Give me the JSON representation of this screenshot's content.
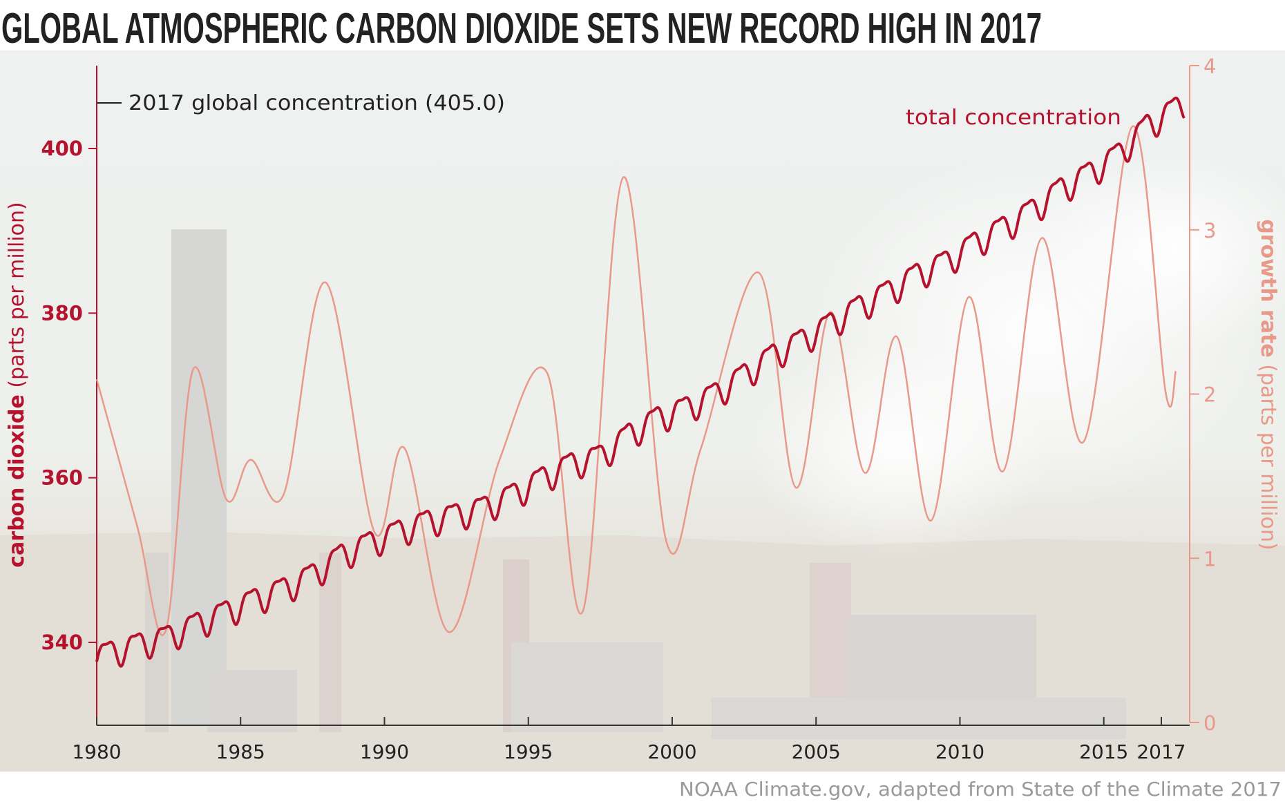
{
  "title": "GLOBAL ATMOSPHERIC CARBON DIOXIDE SETS NEW RECORD HIGH IN 2017",
  "credit": "NOAA Climate.gov, adapted from State of the Climate 2017",
  "colors": {
    "co2": "#b5122e",
    "growth": "#e8998a",
    "text": "#222222",
    "credit": "#9a9a9a"
  },
  "chart_data": {
    "type": "line",
    "title": "GLOBAL ATMOSPHERIC CARBON DIOXIDE SETS NEW RECORD HIGH IN 2017",
    "xlabel": "",
    "xlim": [
      1980,
      2018
    ],
    "x_ticks": [
      "1980",
      "1985",
      "1990",
      "1995",
      "2000",
      "2005",
      "2010",
      "2015",
      "2017"
    ],
    "x_tick_values": [
      1980,
      1985,
      1990,
      1995,
      2000,
      2005,
      2010,
      2015,
      2017
    ],
    "y_left": {
      "label": "carbon dioxide (parts per million)",
      "ylim": [
        330,
        410
      ],
      "ticks": [
        "340",
        "360",
        "380",
        "400"
      ],
      "tick_values": [
        340,
        360,
        380,
        400
      ]
    },
    "y_right": {
      "label": "growth rate (parts per million)",
      "ylim": [
        0,
        4
      ],
      "ticks": [
        "0",
        "1",
        "2",
        "3",
        "4"
      ],
      "tick_values": [
        0,
        1,
        2,
        3,
        4
      ]
    },
    "grid": false,
    "annotation": {
      "text": "2017 global concentration (405.0)",
      "value": 405.0
    },
    "series": [
      {
        "name": "total concentration",
        "axis": "left",
        "annual_mean_years": [
          1980,
          1981,
          1982,
          1983,
          1984,
          1985,
          1986,
          1987,
          1988,
          1989,
          1990,
          1991,
          1992,
          1993,
          1994,
          1995,
          1996,
          1997,
          1998,
          1999,
          2000,
          2001,
          2002,
          2003,
          2004,
          2005,
          2006,
          2007,
          2008,
          2009,
          2010,
          2011,
          2012,
          2013,
          2014,
          2015,
          2016,
          2017
        ],
        "annual_mean_values": [
          338.9,
          339.9,
          340.8,
          342.4,
          343.8,
          345.3,
          346.6,
          348.3,
          350.7,
          352.2,
          353.6,
          354.8,
          355.6,
          356.5,
          358.1,
          360.1,
          361.8,
          362.7,
          365.4,
          367.4,
          368.6,
          370.3,
          372.6,
          375.0,
          376.8,
          378.8,
          380.9,
          382.7,
          384.8,
          386.3,
          388.6,
          390.5,
          392.6,
          395.2,
          397.1,
          399.4,
          402.9,
          405.0
        ]
      },
      {
        "axis": "right",
        "x": [
          1980,
          1981.4,
          1982.4,
          1983.35,
          1984.5,
          1985.35,
          1986.5,
          1987.95,
          1989.65,
          1990.7,
          1992.25,
          1994.0,
          1995.65,
          1996.9,
          1998.3,
          1999.8,
          2001.0,
          2003.0,
          2004.3,
          2005.5,
          2006.7,
          2007.8,
          2009.0,
          2010.3,
          2011.5,
          2012.85,
          2014.3,
          2016.0,
          2017.15,
          2017.5
        ],
        "y": [
          2.09,
          1.2,
          0.56,
          2.15,
          1.36,
          1.6,
          1.39,
          2.68,
          1.16,
          1.67,
          0.55,
          1.6,
          2.13,
          0.68,
          3.32,
          1.1,
          1.67,
          2.74,
          1.43,
          2.5,
          1.52,
          2.35,
          1.23,
          2.59,
          1.53,
          2.95,
          1.71,
          3.63,
          2.01,
          2.14
        ]
      }
    ]
  }
}
